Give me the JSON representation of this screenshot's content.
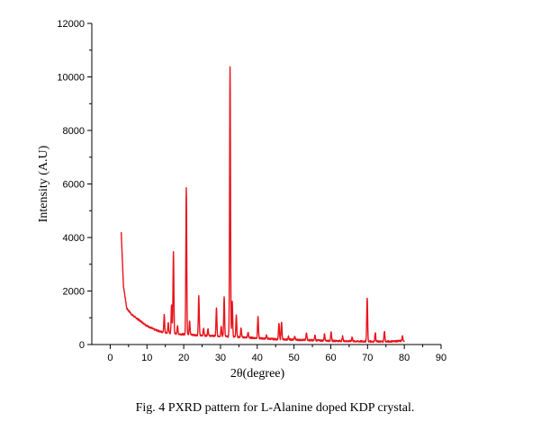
{
  "caption": "Fig. 4 PXRD pattern for L-Alanine doped KDP crystal.",
  "chart_data": {
    "type": "line",
    "xlabel": "2θ(degree)",
    "ylabel": "Intensity (A.U)",
    "xlim": [
      -5,
      90
    ],
    "ylim": [
      0,
      12000
    ],
    "xticks": [
      0,
      10,
      20,
      30,
      40,
      50,
      60,
      70,
      80,
      90
    ],
    "yticks": [
      0,
      2000,
      4000,
      6000,
      8000,
      10000,
      12000
    ],
    "grid": false,
    "line_color": "#e8141c",
    "series": [
      {
        "baseline": [
          [
            3,
            4200
          ],
          [
            3.6,
            2200
          ],
          [
            4.5,
            1350
          ],
          [
            6,
            1100
          ],
          [
            8,
            900
          ],
          [
            10,
            700
          ],
          [
            12,
            560
          ],
          [
            14,
            470
          ],
          [
            16,
            420
          ],
          [
            20,
            380
          ],
          [
            25,
            340
          ],
          [
            30,
            310
          ],
          [
            35,
            280
          ],
          [
            40,
            240
          ],
          [
            45,
            200
          ],
          [
            50,
            180
          ],
          [
            55,
            160
          ],
          [
            60,
            140
          ],
          [
            65,
            125
          ],
          [
            70,
            115
          ],
          [
            75,
            110
          ],
          [
            80,
            140
          ]
        ],
        "peaks": [
          [
            14.7,
            1100
          ],
          [
            15.8,
            800
          ],
          [
            16.7,
            1500
          ],
          [
            17.2,
            3450
          ],
          [
            18.3,
            700
          ],
          [
            20.7,
            5850
          ],
          [
            21.6,
            900
          ],
          [
            24.1,
            1800
          ],
          [
            25.4,
            600
          ],
          [
            26.6,
            600
          ],
          [
            28.9,
            1350
          ],
          [
            30.2,
            700
          ],
          [
            31.0,
            1800
          ],
          [
            32.6,
            10400
          ],
          [
            33.2,
            1600
          ],
          [
            34.3,
            1100
          ],
          [
            35.6,
            600
          ],
          [
            37.5,
            450
          ],
          [
            40.2,
            1050
          ],
          [
            42.5,
            350
          ],
          [
            45.9,
            800
          ],
          [
            46.6,
            850
          ],
          [
            48.5,
            300
          ],
          [
            50.2,
            300
          ],
          [
            53.4,
            450
          ],
          [
            55.7,
            350
          ],
          [
            58.3,
            400
          ],
          [
            60.1,
            450
          ],
          [
            63.2,
            300
          ],
          [
            65.8,
            280
          ],
          [
            69.9,
            1750
          ],
          [
            72.1,
            450
          ],
          [
            74.6,
            500
          ],
          [
            79.5,
            300
          ]
        ]
      }
    ]
  }
}
